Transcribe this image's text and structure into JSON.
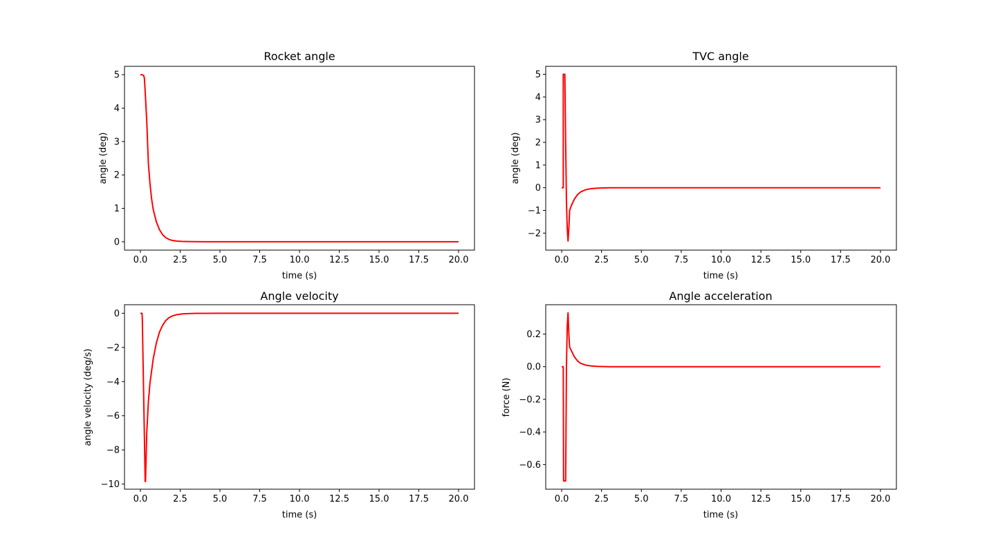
{
  "figure": {
    "line_color": "#ff0000",
    "axes_color": "#000000",
    "background": "#ffffff"
  },
  "chart_data": [
    {
      "type": "line",
      "title": "Rocket angle",
      "xlabel": "time (s)",
      "ylabel": "angle (deg)",
      "xlim": [
        -1.0,
        21.0
      ],
      "ylim": [
        -0.25,
        5.25
      ],
      "xticks": [
        0.0,
        2.5,
        5.0,
        7.5,
        10.0,
        12.5,
        15.0,
        17.5,
        20.0
      ],
      "xtick_labels": [
        "0.0",
        "2.5",
        "5.0",
        "7.5",
        "10.0",
        "12.5",
        "15.0",
        "17.5",
        "20.0"
      ],
      "yticks": [
        0,
        1,
        2,
        3,
        4,
        5
      ],
      "ytick_labels": [
        "0",
        "1",
        "2",
        "3",
        "4",
        "5"
      ],
      "series": [
        {
          "name": "rocket-angle",
          "color": "#ff0000",
          "x": [
            0.0,
            0.1,
            0.2,
            0.25,
            0.3,
            0.4,
            0.5,
            0.6,
            0.7,
            0.8,
            1.0,
            1.2,
            1.4,
            1.6,
            1.8,
            2.0,
            2.3,
            2.6,
            3.0,
            3.5,
            4.0,
            5.0,
            7.5,
            10.0,
            12.5,
            15.0,
            17.5,
            20.0
          ],
          "y": [
            5.0,
            5.0,
            4.98,
            4.9,
            4.5,
            3.6,
            2.35,
            1.75,
            1.3,
            0.98,
            0.6,
            0.36,
            0.21,
            0.12,
            0.07,
            0.04,
            0.02,
            0.01,
            0.005,
            0.002,
            0.0,
            0.0,
            0.0,
            0.0,
            0.0,
            0.0,
            0.0,
            0.0
          ]
        }
      ]
    },
    {
      "type": "line",
      "title": "TVC angle",
      "xlabel": "time (s)",
      "ylabel": "angle (deg)",
      "xlim": [
        -1.0,
        21.0
      ],
      "ylim": [
        -2.75,
        5.35
      ],
      "xticks": [
        0.0,
        2.5,
        5.0,
        7.5,
        10.0,
        12.5,
        15.0,
        17.5,
        20.0
      ],
      "xtick_labels": [
        "0.0",
        "2.5",
        "5.0",
        "7.5",
        "10.0",
        "12.5",
        "15.0",
        "17.5",
        "20.0"
      ],
      "yticks": [
        -2,
        -1,
        0,
        1,
        2,
        3,
        4,
        5
      ],
      "ytick_labels": [
        "−2",
        "−1",
        "0",
        "1",
        "2",
        "3",
        "4",
        "5"
      ],
      "series": [
        {
          "name": "tvc-angle",
          "color": "#ff0000",
          "x": [
            0.0,
            0.05,
            0.1,
            0.1,
            0.15,
            0.2,
            0.25,
            0.3,
            0.35,
            0.4,
            0.45,
            0.5,
            0.6,
            0.8,
            1.0,
            1.2,
            1.5,
            1.8,
            2.2,
            2.6,
            3.0,
            4.0,
            5.0,
            7.5,
            10.0,
            12.5,
            15.0,
            17.5,
            20.0
          ],
          "y": [
            0.0,
            0.0,
            0.0,
            5.0,
            5.0,
            5.0,
            2.0,
            -0.6,
            -1.8,
            -2.35,
            -1.8,
            -1.0,
            -0.8,
            -0.5,
            -0.3,
            -0.18,
            -0.09,
            -0.045,
            -0.02,
            -0.01,
            0.0,
            0.0,
            0.0,
            0.0,
            0.0,
            0.0,
            0.0,
            0.0,
            0.0
          ]
        }
      ]
    },
    {
      "type": "line",
      "title": "Angle velocity",
      "xlabel": "time (s)",
      "ylabel": "angle velocity (deg/s)",
      "xlim": [
        -1.0,
        21.0
      ],
      "ylim": [
        -10.3,
        0.5
      ],
      "xticks": [
        0.0,
        2.5,
        5.0,
        7.5,
        10.0,
        12.5,
        15.0,
        17.5,
        20.0
      ],
      "xtick_labels": [
        "0.0",
        "2.5",
        "5.0",
        "7.5",
        "10.0",
        "12.5",
        "15.0",
        "17.5",
        "20.0"
      ],
      "yticks": [
        -10,
        -8,
        -6,
        -4,
        -2,
        0
      ],
      "ytick_labels": [
        "−10",
        "−8",
        "−6",
        "−4",
        "−2",
        "0"
      ],
      "series": [
        {
          "name": "angle-velocity",
          "color": "#ff0000",
          "x": [
            0.0,
            0.1,
            0.12,
            0.3,
            0.32,
            0.4,
            0.5,
            0.6,
            0.8,
            1.0,
            1.2,
            1.4,
            1.6,
            1.8,
            2.0,
            2.3,
            2.6,
            3.0,
            3.5,
            4.0,
            5.0,
            7.5,
            10.0,
            12.5,
            15.0,
            17.5,
            20.0
          ],
          "y": [
            0.0,
            0.0,
            -0.3,
            -9.85,
            -9.85,
            -7.0,
            -5.2,
            -4.1,
            -2.7,
            -1.75,
            -1.1,
            -0.7,
            -0.42,
            -0.26,
            -0.16,
            -0.08,
            -0.04,
            -0.02,
            -0.008,
            -0.003,
            0.0,
            0.0,
            0.0,
            0.0,
            0.0,
            0.0,
            0.0
          ]
        }
      ]
    },
    {
      "type": "line",
      "title": "Angle acceleration",
      "xlabel": "time (s)",
      "ylabel": "force (N)",
      "xlim": [
        -1.0,
        21.0
      ],
      "ylim": [
        -0.751,
        0.38
      ],
      "xticks": [
        0.0,
        2.5,
        5.0,
        7.5,
        10.0,
        12.5,
        15.0,
        17.5,
        20.0
      ],
      "xtick_labels": [
        "0.0",
        "2.5",
        "5.0",
        "7.5",
        "10.0",
        "12.5",
        "15.0",
        "17.5",
        "20.0"
      ],
      "yticks": [
        -0.6,
        -0.4,
        -0.2,
        0.0,
        0.2
      ],
      "ytick_labels": [
        "−0.6",
        "−0.4",
        "−0.2",
        "0.0",
        "0.2"
      ],
      "series": [
        {
          "name": "angle-acceleration",
          "color": "#ff0000",
          "x": [
            0.0,
            0.05,
            0.1,
            0.12,
            0.2,
            0.25,
            0.3,
            0.35,
            0.4,
            0.45,
            0.5,
            0.6,
            0.8,
            1.0,
            1.2,
            1.5,
            1.8,
            2.2,
            2.6,
            3.0,
            4.0,
            5.0,
            7.5,
            10.0,
            12.5,
            15.0,
            17.5,
            20.0
          ],
          "y": [
            0.0,
            0.0,
            0.0,
            -0.7,
            -0.7,
            -0.7,
            0.0,
            0.25,
            0.33,
            0.2,
            0.12,
            0.1,
            0.06,
            0.035,
            0.02,
            0.01,
            0.005,
            0.002,
            0.001,
            0.0,
            0.0,
            0.0,
            0.0,
            0.0,
            0.0,
            0.0,
            0.0,
            0.0
          ]
        }
      ]
    }
  ]
}
